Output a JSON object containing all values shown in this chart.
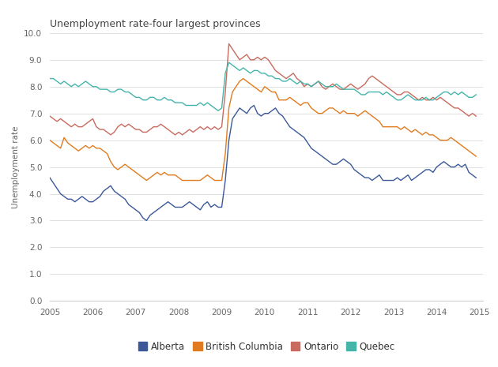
{
  "title": "Unemployment rate-four largest provinces",
  "ylabel": "Unemployment rate",
  "xlim": [
    2005.0,
    2015.08
  ],
  "ylim": [
    0.0,
    10.0
  ],
  "yticks": [
    0.0,
    1.0,
    2.0,
    3.0,
    4.0,
    5.0,
    6.0,
    7.0,
    8.0,
    9.0,
    10.0
  ],
  "xticks": [
    2005,
    2006,
    2007,
    2008,
    2009,
    2010,
    2011,
    2012,
    2013,
    2014,
    2015
  ],
  "colors": {
    "Alberta": "#3B5998",
    "British Columbia": "#E07B20",
    "Ontario": "#C96A5E",
    "Quebec": "#45B5AA"
  },
  "alberta": [
    4.6,
    4.4,
    4.2,
    4.0,
    3.9,
    3.8,
    3.8,
    3.7,
    3.8,
    3.9,
    3.8,
    3.7,
    3.7,
    3.8,
    3.9,
    4.1,
    4.2,
    4.3,
    4.1,
    4.0,
    3.9,
    3.8,
    3.6,
    3.5,
    3.4,
    3.3,
    3.1,
    3.0,
    3.2,
    3.3,
    3.4,
    3.5,
    3.6,
    3.7,
    3.6,
    3.5,
    3.5,
    3.5,
    3.6,
    3.7,
    3.6,
    3.5,
    3.4,
    3.6,
    3.7,
    3.5,
    3.6,
    3.5,
    3.5,
    4.5,
    6.0,
    6.8,
    7.0,
    7.2,
    7.1,
    7.0,
    7.2,
    7.3,
    7.0,
    6.9,
    7.0,
    7.0,
    7.1,
    7.2,
    7.0,
    6.9,
    6.7,
    6.5,
    6.4,
    6.3,
    6.2,
    6.1,
    5.9,
    5.7,
    5.6,
    5.5,
    5.4,
    5.3,
    5.2,
    5.1,
    5.1,
    5.2,
    5.3,
    5.2,
    5.1,
    4.9,
    4.8,
    4.7,
    4.6,
    4.6,
    4.5,
    4.6,
    4.7,
    4.5,
    4.5,
    4.5,
    4.5,
    4.6,
    4.5,
    4.6,
    4.7,
    4.5,
    4.6,
    4.7,
    4.8,
    4.9,
    4.9,
    4.8,
    5.0,
    5.1,
    5.2,
    5.1,
    5.0,
    5.0,
    5.1,
    5.0,
    5.1,
    4.8,
    4.7,
    4.6
  ],
  "bc": [
    6.0,
    5.9,
    5.8,
    5.7,
    6.1,
    5.9,
    5.8,
    5.7,
    5.6,
    5.7,
    5.8,
    5.7,
    5.8,
    5.7,
    5.7,
    5.6,
    5.5,
    5.2,
    5.0,
    4.9,
    5.0,
    5.1,
    5.0,
    4.9,
    4.8,
    4.7,
    4.6,
    4.5,
    4.6,
    4.7,
    4.8,
    4.7,
    4.8,
    4.7,
    4.7,
    4.7,
    4.6,
    4.5,
    4.5,
    4.5,
    4.5,
    4.5,
    4.5,
    4.6,
    4.7,
    4.6,
    4.5,
    4.5,
    4.5,
    5.5,
    7.2,
    7.8,
    8.0,
    8.2,
    8.3,
    8.2,
    8.1,
    8.0,
    7.9,
    7.8,
    8.0,
    7.9,
    7.8,
    7.8,
    7.5,
    7.5,
    7.5,
    7.6,
    7.5,
    7.4,
    7.3,
    7.4,
    7.4,
    7.2,
    7.1,
    7.0,
    7.0,
    7.1,
    7.2,
    7.2,
    7.1,
    7.0,
    7.1,
    7.0,
    7.0,
    7.0,
    6.9,
    7.0,
    7.1,
    7.0,
    6.9,
    6.8,
    6.7,
    6.5,
    6.5,
    6.5,
    6.5,
    6.5,
    6.4,
    6.5,
    6.4,
    6.3,
    6.4,
    6.3,
    6.2,
    6.3,
    6.2,
    6.2,
    6.1,
    6.0,
    6.0,
    6.0,
    6.1,
    6.0,
    5.9,
    5.8,
    5.7,
    5.6,
    5.5,
    5.4
  ],
  "ontario": [
    6.9,
    6.8,
    6.7,
    6.8,
    6.7,
    6.6,
    6.5,
    6.6,
    6.5,
    6.5,
    6.6,
    6.7,
    6.8,
    6.5,
    6.4,
    6.4,
    6.3,
    6.2,
    6.3,
    6.5,
    6.6,
    6.5,
    6.6,
    6.5,
    6.4,
    6.4,
    6.3,
    6.3,
    6.4,
    6.5,
    6.5,
    6.6,
    6.5,
    6.4,
    6.3,
    6.2,
    6.3,
    6.2,
    6.3,
    6.4,
    6.3,
    6.4,
    6.5,
    6.4,
    6.5,
    6.4,
    6.5,
    6.4,
    6.5,
    7.8,
    9.6,
    9.4,
    9.2,
    9.0,
    9.1,
    9.2,
    9.0,
    9.0,
    9.1,
    9.0,
    9.1,
    9.0,
    8.8,
    8.6,
    8.5,
    8.4,
    8.3,
    8.4,
    8.5,
    8.3,
    8.2,
    8.0,
    8.1,
    8.0,
    8.1,
    8.2,
    8.0,
    7.9,
    8.0,
    8.1,
    8.0,
    7.9,
    7.9,
    8.0,
    8.1,
    8.0,
    7.9,
    8.0,
    8.1,
    8.3,
    8.4,
    8.3,
    8.2,
    8.1,
    8.0,
    7.9,
    7.8,
    7.7,
    7.7,
    7.8,
    7.8,
    7.7,
    7.6,
    7.5,
    7.6,
    7.5,
    7.5,
    7.6,
    7.5,
    7.6,
    7.5,
    7.4,
    7.3,
    7.2,
    7.2,
    7.1,
    7.0,
    6.9,
    7.0,
    6.9
  ],
  "quebec": [
    8.3,
    8.3,
    8.2,
    8.1,
    8.2,
    8.1,
    8.0,
    8.1,
    8.0,
    8.1,
    8.2,
    8.1,
    8.0,
    8.0,
    7.9,
    7.9,
    7.9,
    7.8,
    7.8,
    7.9,
    7.9,
    7.8,
    7.8,
    7.7,
    7.6,
    7.6,
    7.5,
    7.5,
    7.6,
    7.6,
    7.5,
    7.5,
    7.6,
    7.5,
    7.5,
    7.4,
    7.4,
    7.4,
    7.3,
    7.3,
    7.3,
    7.3,
    7.4,
    7.3,
    7.4,
    7.3,
    7.2,
    7.1,
    7.2,
    8.5,
    8.9,
    8.8,
    8.7,
    8.6,
    8.7,
    8.6,
    8.5,
    8.6,
    8.6,
    8.5,
    8.5,
    8.4,
    8.4,
    8.3,
    8.3,
    8.2,
    8.2,
    8.3,
    8.2,
    8.1,
    8.2,
    8.1,
    8.1,
    8.0,
    8.1,
    8.2,
    8.1,
    8.0,
    8.0,
    8.0,
    8.1,
    8.0,
    7.9,
    7.9,
    7.9,
    7.9,
    7.8,
    7.7,
    7.7,
    7.8,
    7.8,
    7.8,
    7.8,
    7.7,
    7.8,
    7.7,
    7.6,
    7.5,
    7.5,
    7.6,
    7.7,
    7.6,
    7.5,
    7.5,
    7.5,
    7.6,
    7.5,
    7.5,
    7.6,
    7.7,
    7.8,
    7.8,
    7.7,
    7.8,
    7.7,
    7.8,
    7.7,
    7.6,
    7.6,
    7.7
  ]
}
